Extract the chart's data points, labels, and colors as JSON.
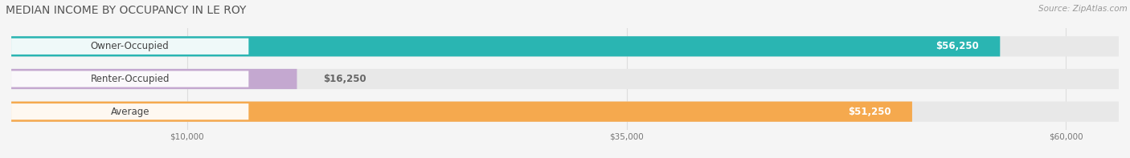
{
  "title": "MEDIAN INCOME BY OCCUPANCY IN LE ROY",
  "source": "Source: ZipAtlas.com",
  "categories": [
    "Owner-Occupied",
    "Renter-Occupied",
    "Average"
  ],
  "values": [
    56250,
    16250,
    51250
  ],
  "labels": [
    "$56,250",
    "$16,250",
    "$51,250"
  ],
  "bar_colors": [
    "#2ab5b2",
    "#c4a8d0",
    "#f5a94e"
  ],
  "bar_bg_color": "#e8e8e8",
  "x_max": 63000,
  "x_ticks": [
    10000,
    35000,
    60000
  ],
  "x_tick_labels": [
    "$10,000",
    "$35,000",
    "$60,000"
  ],
  "background_color": "#f5f5f5",
  "label_color_inside": "#ffffff",
  "label_color_outside": "#666666",
  "title_fontsize": 10,
  "source_fontsize": 7.5,
  "label_fontsize": 8.5,
  "category_fontsize": 8.5,
  "grid_color": "#dddddd"
}
